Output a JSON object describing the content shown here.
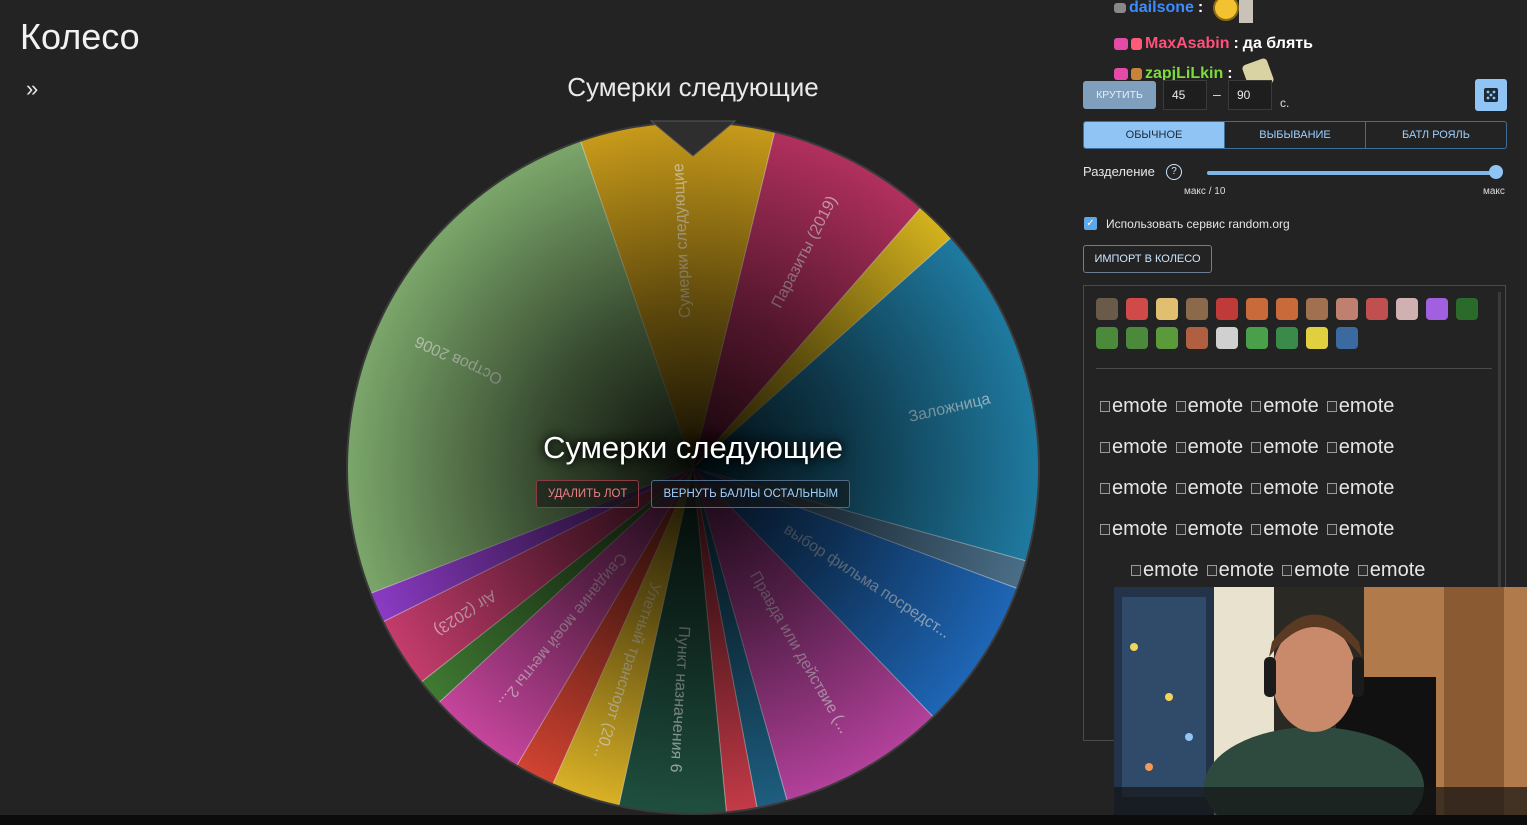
{
  "page": {
    "title": "Колесо",
    "expand_icon": "double-chevron-right-icon"
  },
  "wheel": {
    "heading": "Сумерки следующие",
    "winner": "Сумерки следующие",
    "delete_label": "УДАЛИТЬ ЛОТ",
    "return_label": "ВЕРНУТЬ БАЛЛЫ ОСТАЛЬНЫМ",
    "segments": [
      {
        "label": "Сумерки следующие",
        "value": 10.2,
        "color": "#c79a1a"
      },
      {
        "label": "Паразиты (2019)",
        "value": 8.6,
        "color": "#b1305e"
      },
      {
        "label": "",
        "value": 2.2,
        "color": "#d4b21e"
      },
      {
        "label": "Заложница",
        "value": 17.9,
        "color": "#1f7aa0"
      },
      {
        "label": "",
        "value": 1.5,
        "color": "#4a6e88"
      },
      {
        "label": "выбор фильма посредст...",
        "value": 8.0,
        "color": "#1e66b6"
      },
      {
        "label": "Правда или действие (...",
        "value": 8.8,
        "color": "#b2419a"
      },
      {
        "label": "",
        "value": 1.6,
        "color": "#1e5e80"
      },
      {
        "label": "",
        "value": 1.6,
        "color": "#c43a48"
      },
      {
        "label": "Пункт назначения 6",
        "value": 5.6,
        "color": "#1f4f3f"
      },
      {
        "label": "Улетный транспорт (20...",
        "value": 3.6,
        "color": "#d9b126"
      },
      {
        "label": "",
        "value": 2.1,
        "color": "#d14331"
      },
      {
        "label": "Свидание моей мечты 2...",
        "value": 5.2,
        "color": "#c5459c"
      },
      {
        "label": "",
        "value": 1.4,
        "color": "#3f7a32"
      },
      {
        "label": "Air (2023)",
        "value": 3.7,
        "color": "#c43c6c"
      },
      {
        "label": "",
        "value": 1.6,
        "color": "#8b3bc4"
      },
      {
        "label": "Остров 2006",
        "value": 28.8,
        "color": "#7ba66a"
      }
    ]
  },
  "chat": {
    "messages": [
      {
        "user": "dailsone",
        "color": "#3b8cff",
        "text": ""
      },
      {
        "user": "MaxAsabin",
        "color": "#ff4f7a",
        "text": "да блять"
      },
      {
        "user": "zapjLiLkin",
        "color": "#7ddc3a",
        "text": ""
      }
    ]
  },
  "controls": {
    "spin_label": "КРУТИТЬ",
    "min_time": "45",
    "max_time": "90",
    "dash": "–",
    "unit": "с.",
    "random_icon": "dice-icon",
    "modes": [
      "ОБЫЧНОЕ",
      "ВЫБЫВАНИЕ",
      "БАТЛ РОЯЛЬ"
    ],
    "active_mode": 0,
    "split_label": "Разделение",
    "help_icon": "question-circle-icon",
    "slider_min_label": "макс / 10",
    "slider_max_label": "макс",
    "slider_value": 1.0,
    "random_org_label": "Использовать сервис random.org",
    "random_org_checked": true,
    "import_label": "ИМПОРТ В КОЛЕСО",
    "emote_alt": "emote"
  }
}
